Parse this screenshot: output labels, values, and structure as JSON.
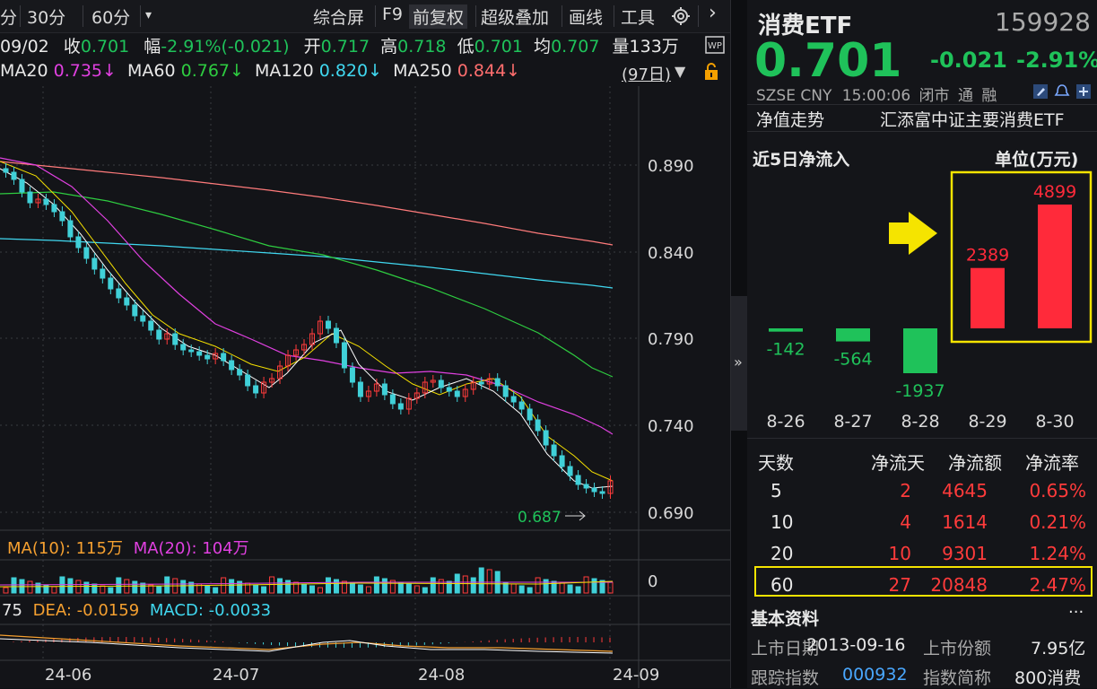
{
  "toolbar": {
    "items": [
      "分",
      "30分",
      "60分"
    ],
    "dropdown": "▾",
    "right_items": [
      "综合屏",
      "F9",
      "前复权",
      "超级叠加",
      "画线",
      "工具"
    ],
    "more": "›"
  },
  "quote_row": {
    "date": "09/02",
    "close_label": "收",
    "close": "0.701",
    "change_label": "幅",
    "change": "-2.91%(-0.021)",
    "open_label": "开",
    "open": "0.717",
    "high_label": "高",
    "high": "0.718",
    "low_label": "低",
    "low": "0.701",
    "avg_label": "均",
    "avg": "0.707",
    "vol_label": "量",
    "vol": "133万"
  },
  "ma_row": {
    "ma20_label": "MA20",
    "ma20": "0.735↓",
    "ma60_label": "MA60",
    "ma60": "0.767↓",
    "ma120_label": "MA120",
    "ma120": "0.820↓",
    "ma250_label": "MA250",
    "ma250": "0.844↓",
    "period": "(97日)",
    "colors": {
      "ma20": "#e040e0",
      "ma60": "#2ecc40",
      "ma120": "#40d8f0",
      "ma250": "#ff6e6e"
    }
  },
  "price_axis": [
    "0.890",
    "0.840",
    "0.790",
    "0.740",
    "0.690"
  ],
  "low_marker": "0.687",
  "volume_row": {
    "ma10_label": "MA(10):",
    "ma10": "115万",
    "ma20_label": "MA(20):",
    "ma20": "104万",
    "axis_zero": "0"
  },
  "macd_row": {
    "dif": "75",
    "dea_label": "DEA:",
    "dea": "-0.0159",
    "macd_label": "MACD:",
    "macd": "-0.0033"
  },
  "date_axis": [
    "24-06",
    "24-07",
    "24-08",
    "24-09"
  ],
  "collapse_icon": "»",
  "header": {
    "name": "消费ETF",
    "code": "159928",
    "price": "0.701",
    "change": "-0.021",
    "change_pct": "-2.91%",
    "market": "SZSE",
    "currency": "CNY",
    "time": "15:00:06",
    "status": "闭市",
    "tag_tong": "通",
    "tag_rong": "融"
  },
  "nav_row": {
    "left": "净值走势",
    "right": "汇添富中证主要消费ETF"
  },
  "flow": {
    "title": "近5日净流入",
    "unit": "单位(万元)",
    "arrow_color": "#f5e400",
    "highlight_color": "#f5e400"
  },
  "chart_data": {
    "type": "bar",
    "categories": [
      "8-26",
      "8-27",
      "8-28",
      "8-29",
      "8-30"
    ],
    "values": [
      -142,
      -564,
      -1937,
      2389,
      4899
    ],
    "title": "近5日净流入",
    "ylabel": "单位(万元)",
    "colors": {
      "positive": "#ff2a3a",
      "negative": "#1fc25a"
    }
  },
  "flow_table": {
    "headers": [
      "天数",
      "净流天",
      "净流额",
      "净流率"
    ],
    "rows": [
      [
        "5",
        "2",
        "4645",
        "0.65%"
      ],
      [
        "10",
        "4",
        "1614",
        "0.21%"
      ],
      [
        "20",
        "10",
        "9301",
        "1.24%"
      ],
      [
        "60",
        "27",
        "20848",
        "2.47%"
      ]
    ]
  },
  "basic": {
    "title": "基本资料",
    "more": "···",
    "list_date_label": "上市日期",
    "list_date": "2013-09-16",
    "shares_label": "上市份额",
    "shares": "7.95亿",
    "track_label": "跟踪指数",
    "track_code": "000932",
    "short_label": "指数简称",
    "short_name": "800消费"
  }
}
